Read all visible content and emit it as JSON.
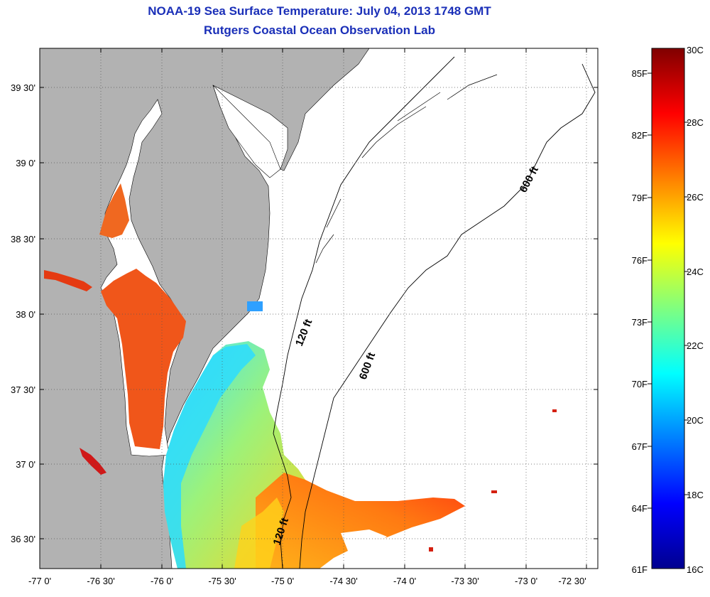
{
  "title": "NOAA-19 Sea Surface Temperature:  July 04, 2013 1748 GMT",
  "subtitle": "Rutgers Coastal Ocean Observation Lab",
  "map": {
    "lat_labels": [
      "39 30'",
      "39 0'",
      "38 30'",
      "38 0'",
      "37 30'",
      "37 0'",
      "36 30'"
    ],
    "lon_labels": [
      "-77 0'",
      "-76 30'",
      "-76 0'",
      "-75 30'",
      "-75 0'",
      "-74 30'",
      "-74 0'",
      "-73 30'",
      "-73 0'",
      "-72 30'"
    ],
    "contour_labels": [
      "600 ft",
      "600 ft",
      "120 ft",
      "120 ft"
    ]
  },
  "colorbar": {
    "celsius": [
      "30C",
      "28C",
      "26C",
      "24C",
      "22C",
      "20C",
      "18C",
      "16C"
    ],
    "fahrenheit": [
      "85F",
      "82F",
      "79F",
      "76F",
      "73F",
      "70F",
      "67F",
      "64F",
      "61F"
    ],
    "min_c": 16,
    "max_c": 30
  },
  "colors": {
    "title": "#1a2fb8",
    "land": "#b2b2b2"
  }
}
